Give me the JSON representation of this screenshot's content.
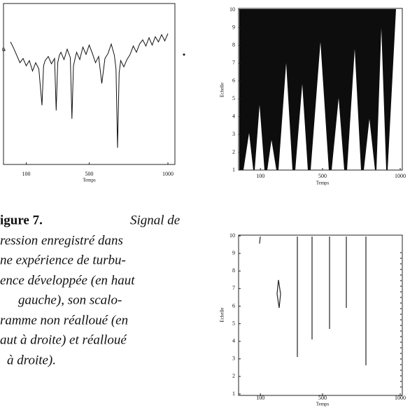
{
  "chart_data": [
    {
      "type": "line",
      "color": "#111111",
      "x": [
        0,
        20,
        40,
        60,
        80,
        100,
        120,
        140,
        160,
        180,
        200,
        210,
        220,
        240,
        260,
        280,
        290,
        300,
        310,
        320,
        340,
        360,
        380,
        390,
        400,
        410,
        420,
        440,
        460,
        480,
        500,
        520,
        540,
        560,
        580,
        600,
        620,
        640,
        660,
        670,
        680,
        690,
        700,
        720,
        740,
        760,
        780,
        800,
        820,
        840,
        860,
        880,
        900,
        920,
        940,
        960,
        980,
        1000
      ],
      "values": [
        0.8,
        0.2,
        -0.5,
        -1.2,
        -0.8,
        -1.5,
        -1.0,
        -2.0,
        -1.2,
        -1.8,
        -5.3,
        -1.5,
        -1.0,
        -0.6,
        -1.3,
        -0.8,
        -5.8,
        -1.2,
        -0.5,
        -0.2,
        -0.9,
        0.1,
        -0.7,
        -6.6,
        -1.5,
        -0.8,
        -0.2,
        -0.9,
        0.3,
        -0.4,
        0.5,
        -0.3,
        -1.2,
        -0.6,
        -3.2,
        -0.8,
        -0.3,
        0.6,
        -0.5,
        -1.8,
        -9.4,
        -2.2,
        -1.0,
        -1.6,
        -0.9,
        -0.4,
        0.4,
        -0.2,
        0.6,
        1.0,
        0.4,
        1.2,
        0.5,
        1.3,
        0.8,
        1.5,
        0.9,
        1.6
      ],
      "xlim": [
        0,
        1000
      ],
      "xticks": [
        100,
        500,
        1000
      ],
      "xlabel": "Temps",
      "ylim": [
        -11,
        4.5
      ],
      "yticks": [
        0
      ]
    },
    {
      "type": "scalogram",
      "xlim": [
        0,
        1000
      ],
      "xticks": [
        100,
        500,
        1000
      ],
      "xlabel": "Temps",
      "ylim": [
        1,
        10
      ],
      "yticks": [
        1,
        2,
        3,
        4,
        5,
        6,
        7,
        8,
        9,
        10
      ],
      "ylabel": "Echelle"
    },
    {
      "type": "scalogram",
      "xlim": [
        0,
        1000
      ],
      "xticks": [
        100,
        500,
        1000
      ],
      "xlabel": "Temps",
      "ylim": [
        1,
        10
      ],
      "yticks": [
        1,
        2,
        3,
        4,
        5,
        6,
        7,
        8,
        9,
        10
      ],
      "ylabel": "Echelle"
    }
  ],
  "caption": {
    "label": "igure 7.",
    "lines": [
      "Signal de",
      "ression enregistré dans",
      "ne expérience de turbu-",
      "ence développée (en haut",
      "gauche),  son  scalo-",
      "ramme non réalloué (en",
      "aut à droite) et réalloué",
      "à droite)."
    ]
  }
}
